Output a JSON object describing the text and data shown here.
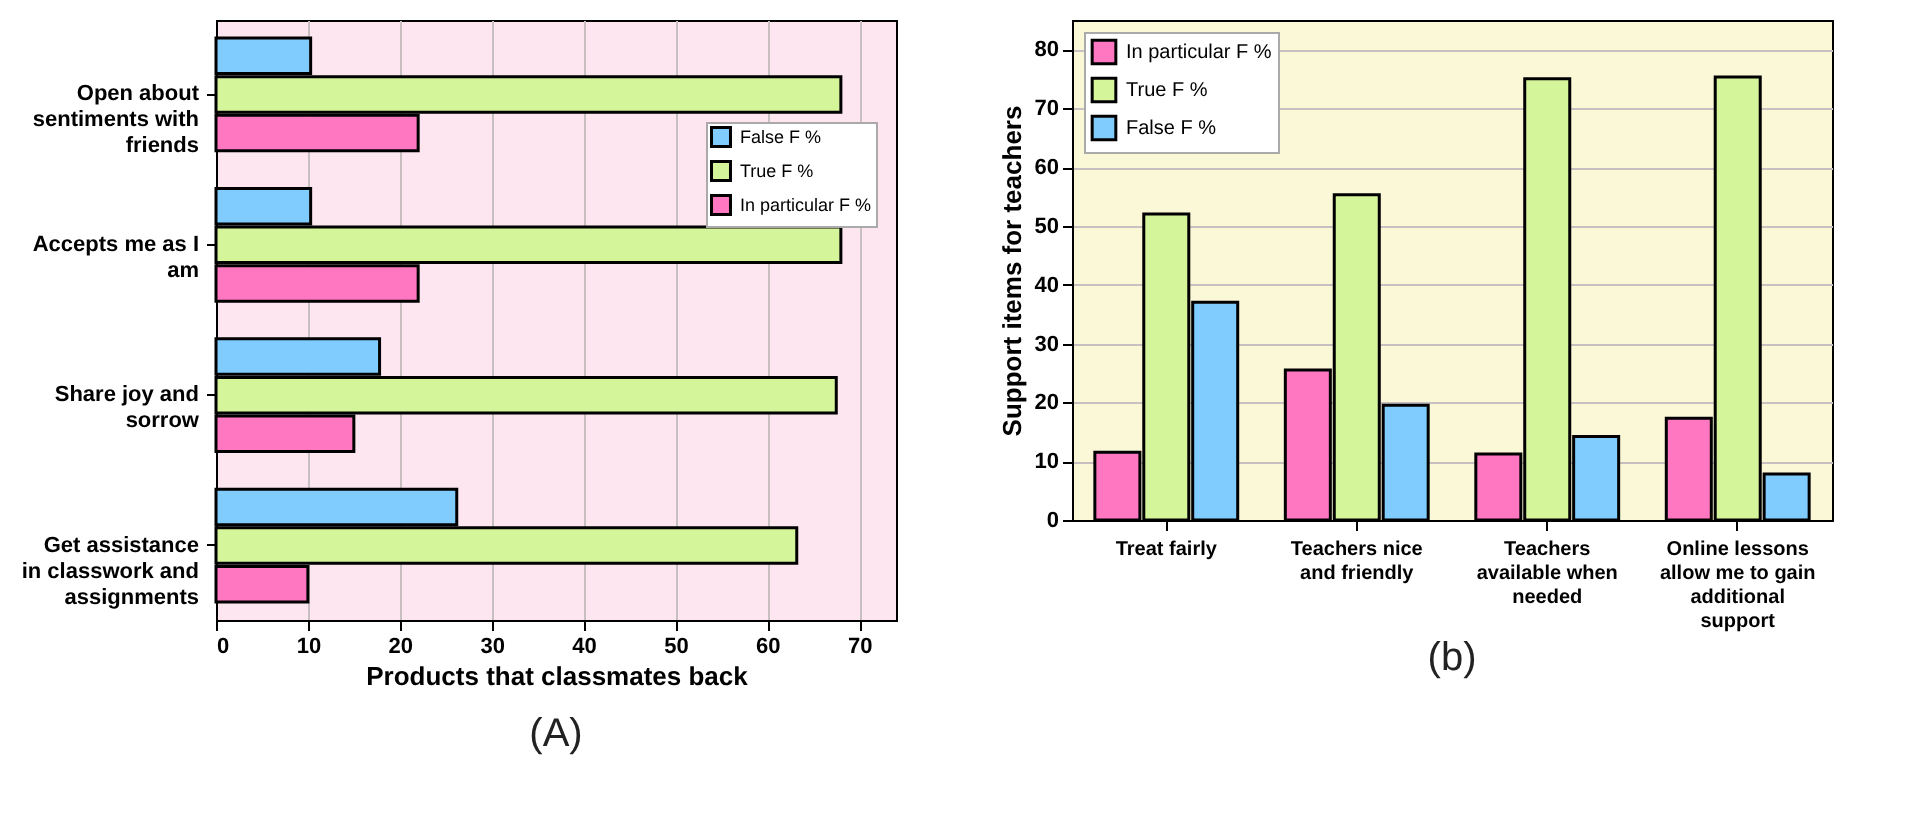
{
  "chart_data": [
    {
      "type": "bar",
      "orientation": "horizontal",
      "xlabel": "Products that classmates back",
      "categories": [
        "Open about sentiments with friends",
        "Accepts me as I am",
        "Share joy and sorrow",
        "Get assistance in classwork and assignments"
      ],
      "series": [
        {
          "name": "False F %",
          "color": "#80ccff",
          "values": [
            10.3,
            10.3,
            17.8,
            26.2
          ]
        },
        {
          "name": "True F %",
          "color": "#d4f59a",
          "values": [
            68,
            68,
            67.5,
            63.2
          ]
        },
        {
          "name": "In particular F %",
          "color": "#ff77c0",
          "values": [
            22,
            22,
            15,
            10
          ]
        }
      ],
      "xlim": [
        0,
        74
      ],
      "xticks": [
        0,
        10,
        20,
        30,
        40,
        50,
        60,
        70
      ],
      "grid": "x",
      "legend": "top right",
      "annotations": [
        "(A)"
      ]
    },
    {
      "type": "bar",
      "ylabel": "Support items for teachers",
      "categories": [
        "Treat fairly",
        "Teachers nice and friendly",
        "Teachers available when needed",
        "Online lessons allow me to gain additional support"
      ],
      "series": [
        {
          "name": "In particular F %",
          "color": "#ff77c0",
          "values": [
            11.5,
            25.5,
            11.2,
            17.3
          ]
        },
        {
          "name": "True F %",
          "color": "#d4f59a",
          "values": [
            52,
            55.3,
            75,
            75.3
          ]
        },
        {
          "name": "False F %",
          "color": "#80ccff",
          "values": [
            37,
            19.5,
            14.2,
            7.8
          ]
        }
      ],
      "ylim": [
        0,
        85
      ],
      "yticks": [
        0,
        10,
        20,
        30,
        40,
        50,
        60,
        70,
        80
      ],
      "grid": "y",
      "legend": "top left",
      "annotations": [
        "(b)"
      ]
    }
  ]
}
